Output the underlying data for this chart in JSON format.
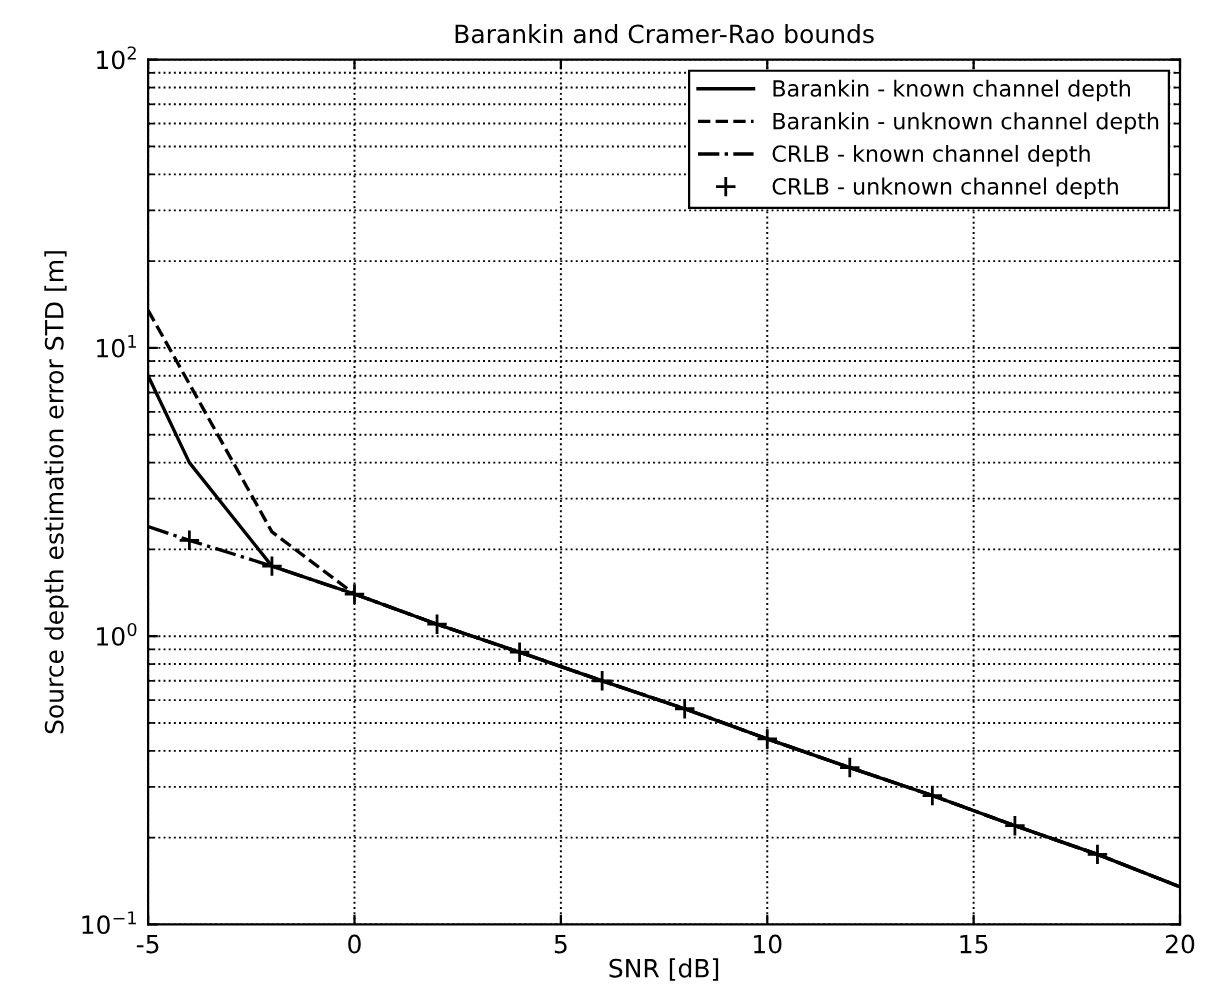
{
  "chart_data": {
    "type": "line",
    "title": "Barankin and Cramer-Rao bounds",
    "xlabel": "SNR [dB]",
    "ylabel": "Source depth estimation error STD [m]",
    "log": "y",
    "grid": true,
    "legend": "top right",
    "xlim": [
      -5,
      20
    ],
    "xticks": [
      -5,
      0,
      5,
      10,
      15,
      20
    ],
    "ylim": [
      0.1,
      100
    ],
    "yticks": [
      {
        "value": 0.1,
        "label": "10$^{−1}$"
      },
      {
        "value": 1,
        "label": "10$^{0}$"
      },
      {
        "value": 10,
        "label": "10$^{1}$"
      },
      {
        "value": 100,
        "label": "10$^{2}$"
      }
    ],
    "series": [
      {
        "name": "Barankin - known channel depth",
        "color": "#000000",
        "line_style": "solid",
        "marker": "none",
        "x": [
          -5,
          -4,
          -2,
          0,
          2,
          4,
          6,
          8,
          10,
          12,
          14,
          16,
          18,
          20
        ],
        "values": [
          8,
          4.0,
          1.75,
          1.4,
          1.1,
          0.88,
          0.7,
          0.56,
          0.44,
          0.35,
          0.28,
          0.22,
          0.175,
          0.135
        ]
      },
      {
        "name": "Barankin - unknown channel depth",
        "color": "#000000",
        "line_style": "dashed",
        "marker": "none",
        "x": [
          -5,
          -4,
          -2,
          0,
          2,
          4,
          6,
          8,
          10,
          12,
          14,
          16,
          18,
          20
        ],
        "values": [
          13.5,
          7.5,
          2.3,
          1.4,
          1.1,
          0.88,
          0.7,
          0.56,
          0.44,
          0.35,
          0.28,
          0.22,
          0.175,
          0.135
        ]
      },
      {
        "name": "CRLB - known channel depth",
        "color": "#000000",
        "line_style": "dashdot",
        "marker": "none",
        "x": [
          -5,
          -4,
          -2,
          0,
          2,
          4,
          6,
          8,
          10,
          12,
          14,
          16,
          18,
          20
        ],
        "values": [
          2.4,
          2.15,
          1.75,
          1.4,
          1.1,
          0.88,
          0.7,
          0.56,
          0.44,
          0.35,
          0.28,
          0.22,
          0.175,
          0.135
        ]
      },
      {
        "name": "CRLB - unknown channel depth",
        "type": "scatter",
        "color": "#000000",
        "marker": "cross",
        "x": [
          -4,
          -2,
          0,
          2,
          4,
          6,
          8,
          10,
          12,
          14,
          16,
          18
        ],
        "values": [
          2.15,
          1.75,
          1.4,
          1.1,
          0.88,
          0.7,
          0.56,
          0.44,
          0.35,
          0.28,
          0.22,
          0.175
        ]
      }
    ]
  }
}
